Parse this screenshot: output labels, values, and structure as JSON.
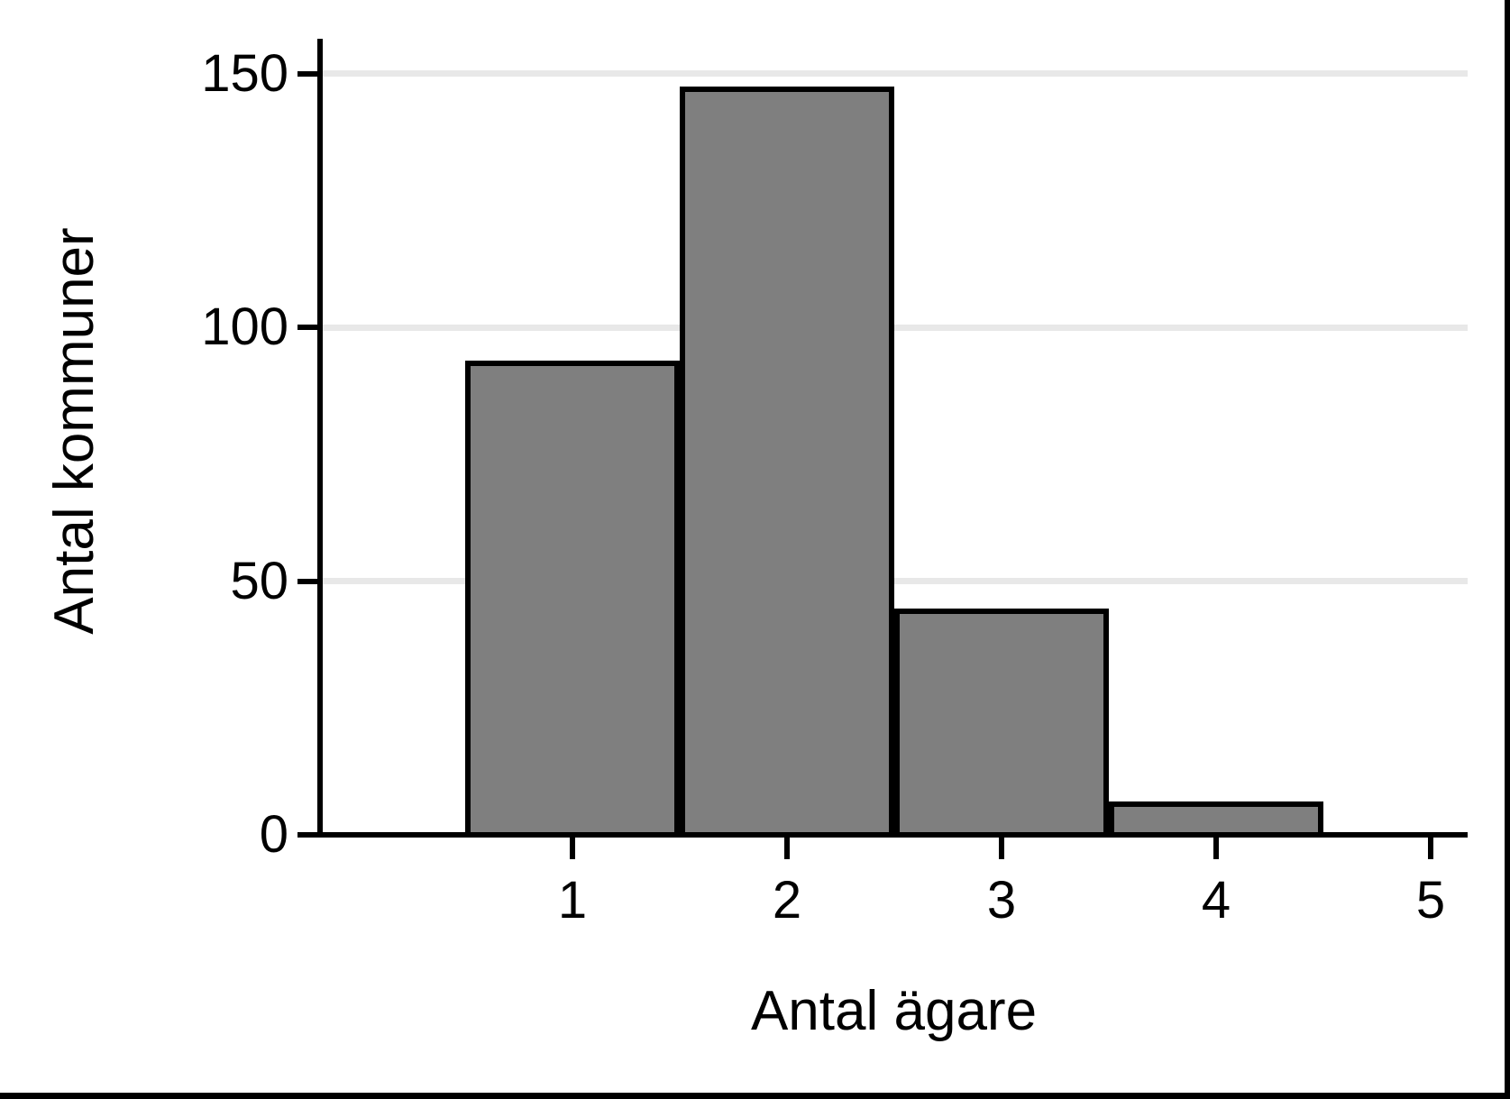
{
  "figure": {
    "background_color": "#ffffff",
    "frame_color": "#000000"
  },
  "chart_data": {
    "type": "bar",
    "title": "",
    "xlabel": "Antal ägare",
    "ylabel": "Antal kommuner",
    "categories": [
      1,
      2,
      3,
      4
    ],
    "values": [
      93,
      147,
      44,
      6
    ],
    "xtick_labels": [
      "1",
      "2",
      "3",
      "4",
      "5"
    ],
    "xticks": [
      1,
      2,
      3,
      4,
      5
    ],
    "ytick_labels": [
      "0",
      "50",
      "100",
      "150"
    ],
    "yticks": [
      0,
      50,
      100,
      150
    ],
    "xlim": [
      0,
      5.35
    ],
    "ylim": [
      0,
      157
    ],
    "bar_width": 1,
    "grid": "horizontal",
    "legend": "none",
    "bar_fill_color": "#7f7f7f",
    "bar_border_color": "#000000",
    "gridline_color": "#e8e8e8",
    "axis_color": "#000000"
  }
}
